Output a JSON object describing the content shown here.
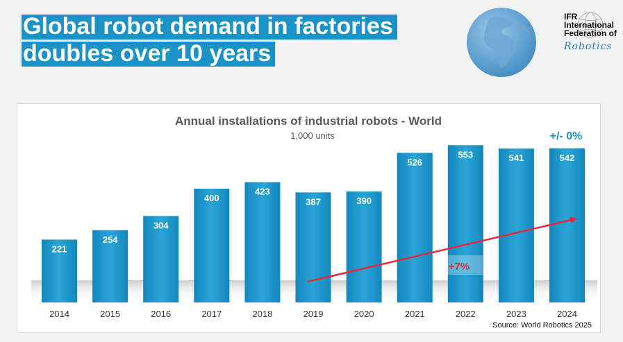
{
  "headline": {
    "line1": "Global robot demand in factories",
    "line2": "doubles over 10 years"
  },
  "logo": {
    "line1": "IFR",
    "line2": "International",
    "line3": "Federation of",
    "line4": "Robotics"
  },
  "colors": {
    "headline_bg": "#1a94c6",
    "bar": "#1a94c6",
    "trend_arrow": "#e8283a",
    "change_label": "#1a94c6"
  },
  "chart_data": {
    "type": "bar",
    "title": "Annual installations of industrial robots - World",
    "subtitle": "1,000 units",
    "categories": [
      "2014",
      "2015",
      "2016",
      "2017",
      "2018",
      "2019",
      "2020",
      "2021",
      "2022",
      "2023",
      "2024"
    ],
    "values": [
      221,
      254,
      304,
      400,
      423,
      387,
      390,
      526,
      553,
      541,
      542
    ],
    "ylim": [
      0,
      600
    ],
    "grid": false,
    "annotations": {
      "change": "+/- 0%",
      "cagr": "+7%"
    },
    "source": "Source: World Robotics 2025"
  }
}
